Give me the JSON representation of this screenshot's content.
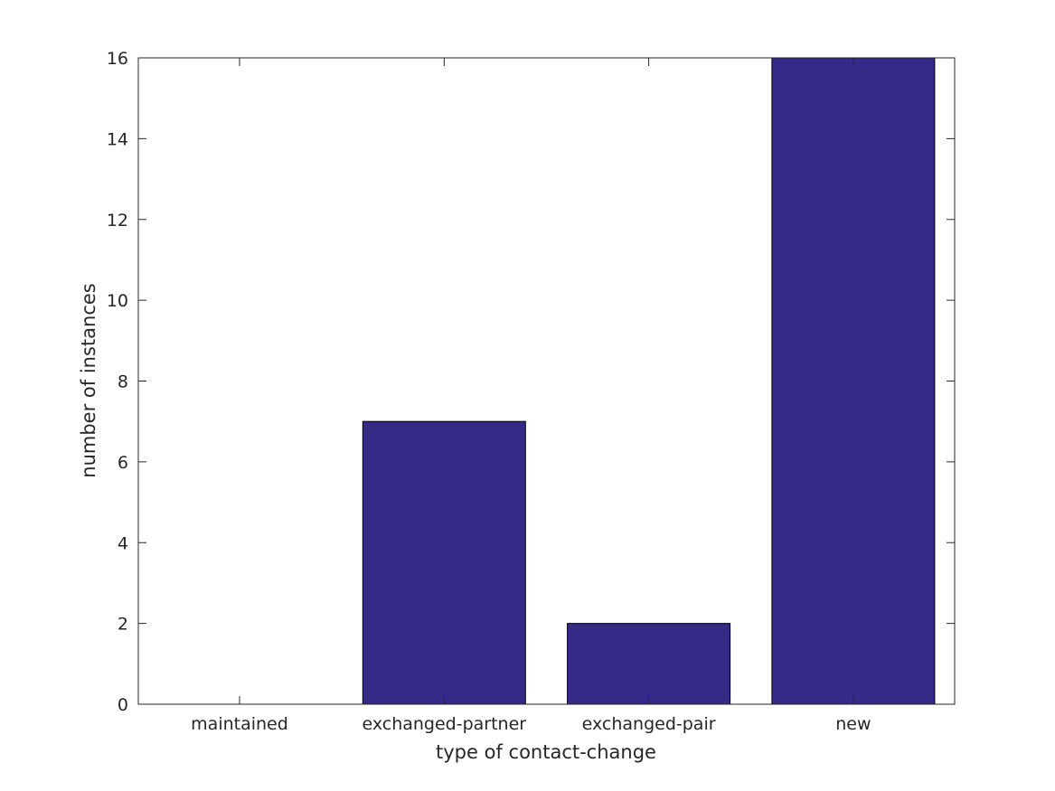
{
  "chart_data": {
    "type": "bar",
    "categories": [
      "maintained",
      "exchanged-partner",
      "exchanged-pair",
      "new"
    ],
    "values": [
      0,
      7,
      2,
      16
    ],
    "xlabel": "type of contact-change",
    "ylabel": "number of instances",
    "ylim": [
      0,
      16
    ],
    "yticks": [
      0,
      2,
      4,
      6,
      8,
      10,
      12,
      14,
      16
    ],
    "grid": false,
    "bar_color": "#352a87",
    "axis_color": "#262626"
  }
}
